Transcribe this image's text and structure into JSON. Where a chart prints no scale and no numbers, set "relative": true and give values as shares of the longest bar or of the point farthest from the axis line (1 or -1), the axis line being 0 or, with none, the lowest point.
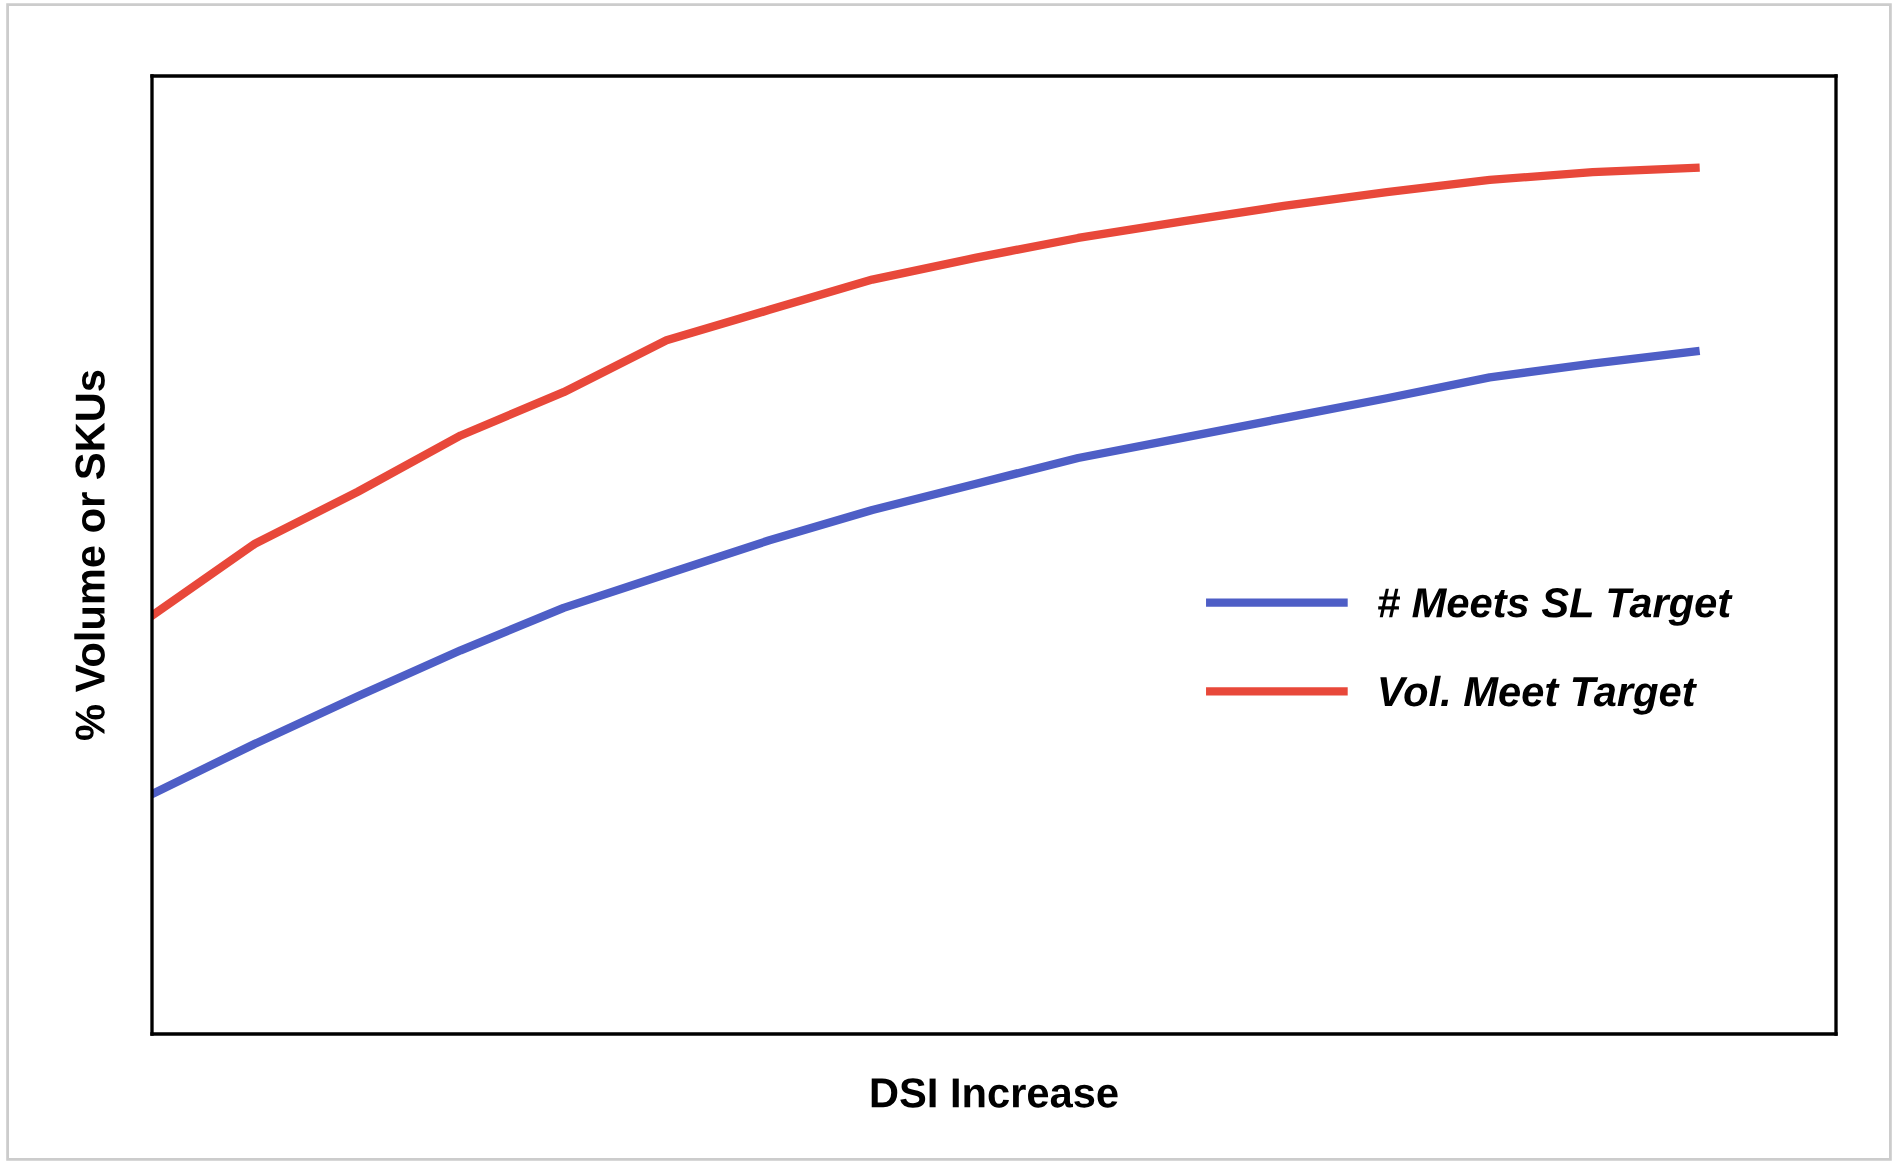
{
  "chart_data": {
    "type": "line",
    "xlabel": "DSI Increase",
    "ylabel": "% Volume or SKUs",
    "relative": true,
    "legend": "right",
    "grid": false,
    "marker": "none",
    "line_style": "solid",
    "categories": [
      null,
      null,
      null,
      null,
      null,
      null,
      null,
      null,
      null,
      null,
      null,
      null,
      null,
      null,
      null,
      null
    ],
    "series": [
      {
        "name": "# Meets SL Target",
        "color": "#4e5ec6",
        "values": [
          0.277,
          0.335,
          0.39,
          0.443,
          0.492,
          0.531,
          0.57,
          0.605,
          0.635,
          0.665,
          0.688,
          0.711,
          0.734,
          0.758,
          0.774,
          0.788
        ]
      },
      {
        "name": "Vol. Meet Target",
        "color": "#e8483a",
        "values": [
          0.483,
          0.566,
          0.626,
          0.691,
          0.741,
          0.801,
          0.836,
          0.871,
          0.896,
          0.919,
          0.938,
          0.956,
          0.972,
          0.986,
          0.995,
          1.0
        ]
      }
    ]
  }
}
